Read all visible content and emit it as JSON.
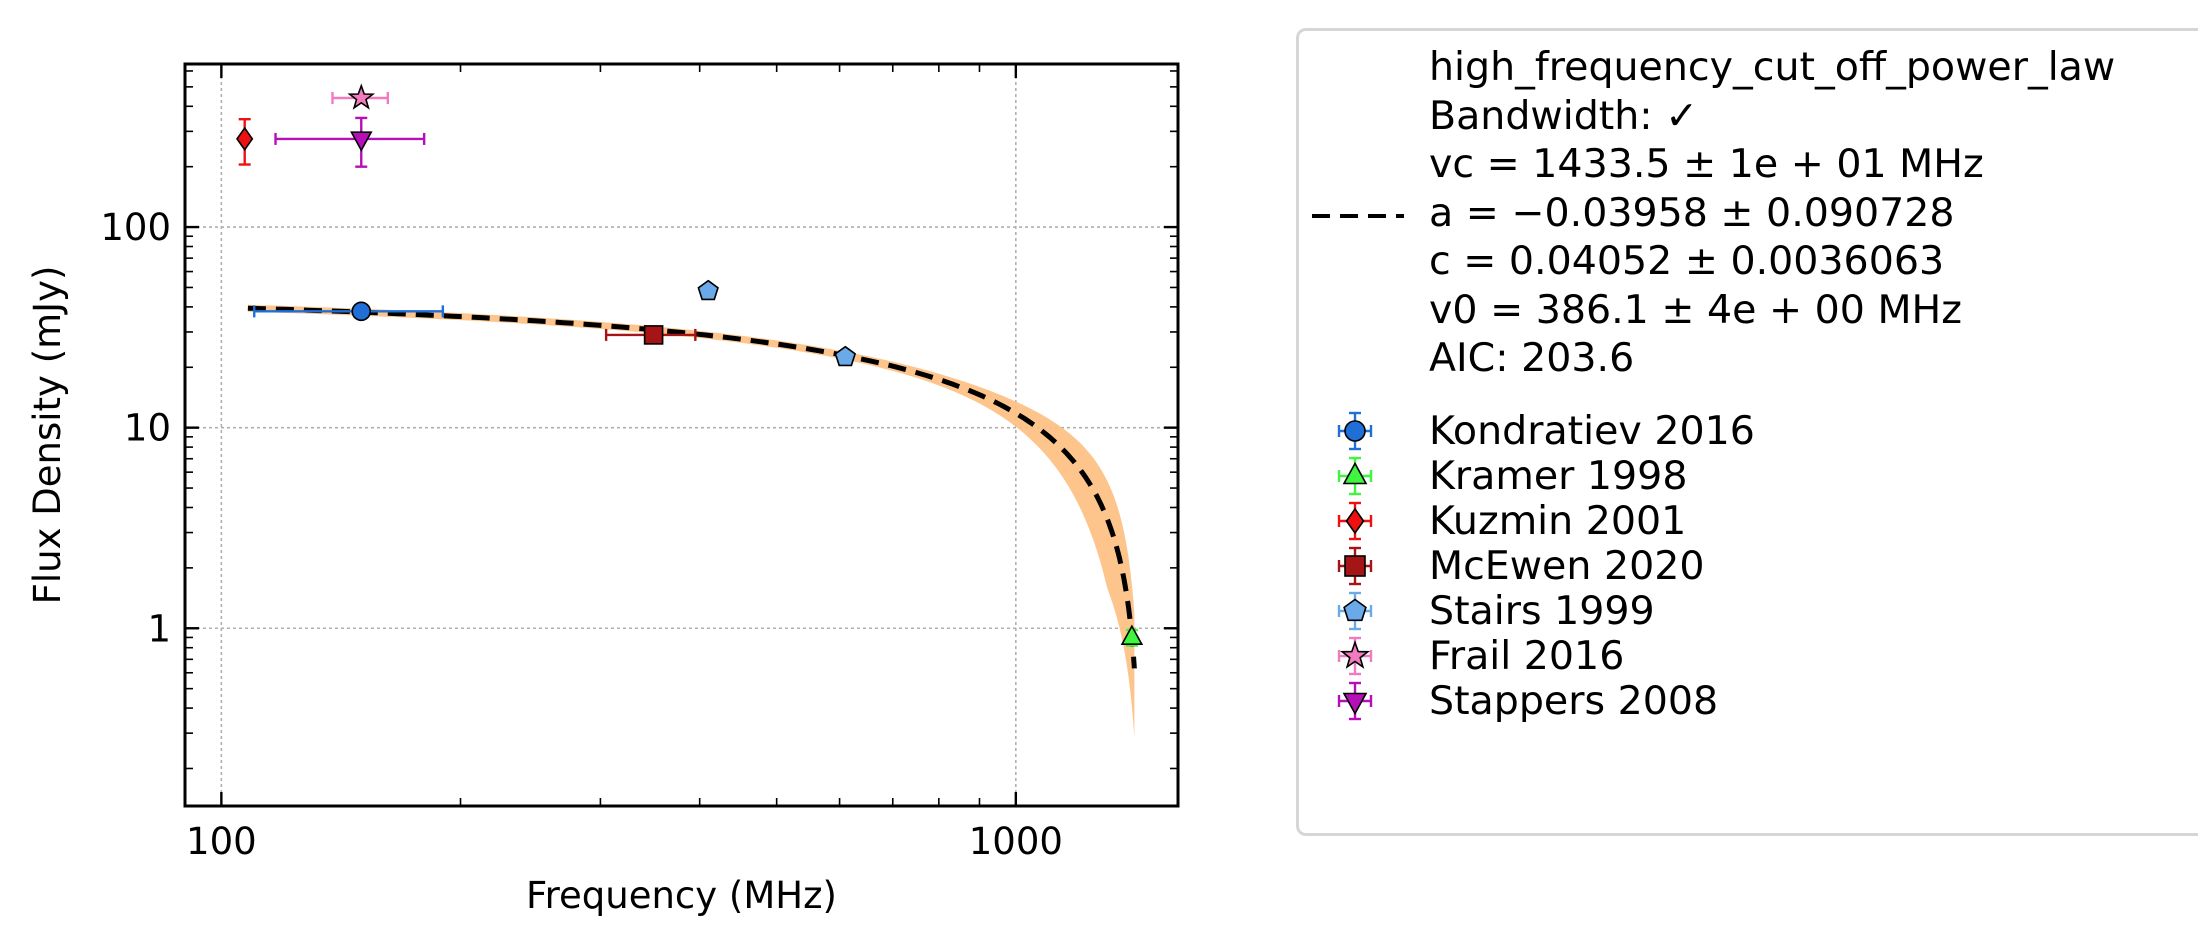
{
  "chart_data": {
    "type": "scatter",
    "title": "",
    "xlabel": "Frequency (MHz)",
    "ylabel": "Flux Density (mJy)",
    "xscale": "log",
    "yscale": "log",
    "xlim": [
      90,
      1600
    ],
    "ylim": [
      0.13,
      650
    ],
    "xticks": [
      {
        "value": 100,
        "label": "100"
      },
      {
        "value": 1000,
        "label": "1000"
      }
    ],
    "yticks": [
      {
        "value": 1,
        "label": "1"
      },
      {
        "value": 10,
        "label": "10"
      },
      {
        "value": 100,
        "label": "100"
      }
    ],
    "grid": true,
    "legend_position": "outside-right",
    "fit": {
      "model": "high_frequency_cut_off_power_law",
      "text_lines": [
        "high_frequency_cut_off_power_law",
        "Bandwidth: ✓",
        "vc = 1433.5 ± 1e + 01 MHz",
        "a = −0.03958 ± 0.090728",
        "c = 0.04052 ± 0.0036063",
        "v0 = 386.1 ± 4e + 00 MHz",
        "AIC: 203.6"
      ],
      "vc": 1433.5,
      "a": -0.03958,
      "c": 0.04052,
      "v0": 386.1,
      "x_range": [
        108,
        1410
      ],
      "line_color": "#000000",
      "band_color": "#fdbf80"
    },
    "series": [
      {
        "name": "Kondratiev 2016",
        "marker": "circle",
        "color": "#1f6fd6",
        "points": [
          {
            "x": 150,
            "y": 38,
            "xerr": [
              40,
              40
            ],
            "yerr": [
              1.5,
              1.5
            ]
          }
        ]
      },
      {
        "name": "Kramer 1998",
        "marker": "triangle-up",
        "color": "#3ff53f",
        "points": [
          {
            "x": 1400,
            "y": 0.9,
            "xerr": [
              0,
              0
            ],
            "yerr": [
              0.08,
              0.08
            ]
          }
        ]
      },
      {
        "name": "Kuzmin 2001",
        "marker": "diamond",
        "color": "#ee1111",
        "points": [
          {
            "x": 107,
            "y": 275,
            "xerr": [
              0,
              0
            ],
            "yerr": [
              70,
              70
            ]
          }
        ]
      },
      {
        "name": "McEwen 2020",
        "marker": "square",
        "color": "#a51515",
        "points": [
          {
            "x": 350,
            "y": 29,
            "xerr": [
              45,
              45
            ],
            "yerr": [
              1.5,
              1.5
            ]
          }
        ]
      },
      {
        "name": "Stairs 1999",
        "marker": "pentagon",
        "color": "#6aaae8",
        "points": [
          {
            "x": 410,
            "y": 48,
            "xerr": [
              0,
              0
            ],
            "yerr": [
              0,
              0
            ]
          },
          {
            "x": 610,
            "y": 22.5,
            "xerr": [
              0,
              0
            ],
            "yerr": [
              0,
              0
            ]
          }
        ]
      },
      {
        "name": "Frail 2016",
        "marker": "star",
        "color": "#f27bc0",
        "points": [
          {
            "x": 150,
            "y": 440,
            "xerr": [
              12,
              12
            ],
            "yerr": [
              0,
              0
            ]
          }
        ]
      },
      {
        "name": "Stappers 2008",
        "marker": "triangle-down",
        "color": "#b510b8",
        "points": [
          {
            "x": 150,
            "y": 275,
            "xerr": [
              33,
              30
            ],
            "yerr": [
              75,
              75
            ]
          }
        ]
      }
    ]
  }
}
